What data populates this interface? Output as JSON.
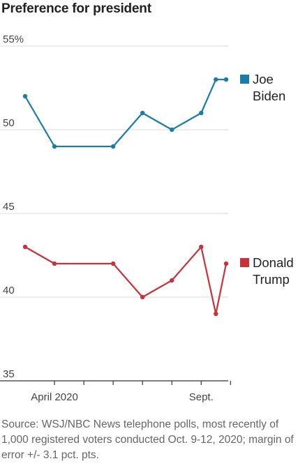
{
  "chart_data": {
    "type": "line",
    "title": "Preference for president",
    "y_ticks": [
      "55%",
      "50",
      "45",
      "40",
      "35"
    ],
    "y_tick_values": [
      55,
      50,
      45,
      40,
      35
    ],
    "ylim": [
      35,
      55
    ],
    "x_tick_labels": [
      {
        "text": "April 2020",
        "x": 4
      },
      {
        "text": "Sept.",
        "x": 9
      }
    ],
    "x_ticks": [
      4,
      5,
      6,
      7,
      8,
      9,
      10
    ],
    "xlim": [
      2.95,
      10.0
    ],
    "series": [
      {
        "name": "Joe Biden",
        "label_lines": [
          "Joe",
          "Biden"
        ],
        "color": "#1a7ca8",
        "x": [
          3.0,
          4.0,
          6.0,
          7.0,
          8.0,
          9.0,
          9.5,
          9.85
        ],
        "values": [
          52,
          49,
          49,
          51,
          50,
          51,
          53,
          53
        ]
      },
      {
        "name": "Donald Trump",
        "label_lines": [
          "Donald",
          "Trump"
        ],
        "color": "#c8323a",
        "x": [
          3.0,
          4.0,
          6.0,
          7.0,
          8.0,
          9.0,
          9.5,
          9.85
        ],
        "values": [
          43,
          42,
          42,
          40,
          41,
          43,
          39,
          42
        ]
      }
    ],
    "grid": true
  },
  "source": "Source: WSJ/NBC News telephone polls, most recently of 1,000 registered voters conducted Oct. 9-12, 2020; margin of error +/- 3.1 pct. pts."
}
